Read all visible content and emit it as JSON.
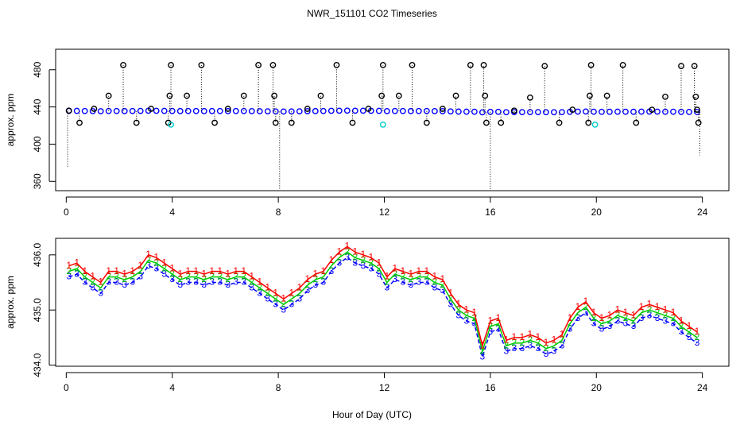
{
  "chart_data": [
    {
      "type": "scatter",
      "title": "NWR_151101  CO2 Timeseries",
      "y_label": "approx. ppm",
      "xlim": [
        -0.4,
        25
      ],
      "ylim": [
        350,
        502
      ],
      "xticks": [
        0,
        4,
        8,
        12,
        16,
        20,
        24
      ],
      "yticks": [
        360,
        400,
        440,
        480
      ],
      "x": [
        0.1,
        0.4,
        0.7,
        1.0,
        1.3,
        1.6,
        1.9,
        2.2,
        2.5,
        2.8,
        3.1,
        3.4,
        3.7,
        4.0,
        4.3,
        4.6,
        4.9,
        5.2,
        5.5,
        5.8,
        6.1,
        6.4,
        6.7,
        7.0,
        7.3,
        7.6,
        7.9,
        8.2,
        8.5,
        8.8,
        9.1,
        9.4,
        9.7,
        10.0,
        10.3,
        10.6,
        10.9,
        11.2,
        11.5,
        11.8,
        12.1,
        12.4,
        12.7,
        13.0,
        13.3,
        13.6,
        13.9,
        14.2,
        14.5,
        14.8,
        15.1,
        15.4,
        15.7,
        16.0,
        16.3,
        16.6,
        16.9,
        17.2,
        17.5,
        17.8,
        18.1,
        18.4,
        18.7,
        19.0,
        19.3,
        19.6,
        19.9,
        20.2,
        20.5,
        20.8,
        21.1,
        21.4,
        21.7,
        22.0,
        22.3,
        22.6,
        22.9,
        23.2,
        23.5,
        23.8
      ],
      "series": [
        {
          "color": "#0000ff",
          "marker": "circle",
          "values": [
            435.7,
            435.75,
            435.6,
            435.5,
            435.4,
            435.6,
            435.6,
            435.55,
            435.6,
            435.7,
            435.9,
            435.85,
            435.75,
            435.65,
            435.55,
            435.6,
            435.6,
            435.55,
            435.6,
            435.6,
            435.55,
            435.6,
            435.6,
            435.5,
            435.4,
            435.3,
            435.2,
            435.1,
            435.2,
            435.3,
            435.45,
            435.55,
            435.6,
            435.8,
            435.95,
            436.05,
            435.95,
            435.9,
            435.85,
            435.75,
            435.5,
            435.65,
            435.6,
            435.55,
            435.6,
            435.6,
            435.5,
            435.45,
            435.2,
            435.0,
            434.9,
            434.85,
            434.25,
            434.7,
            434.75,
            434.35,
            434.4,
            434.4,
            434.45,
            434.4,
            434.3,
            434.35,
            434.45,
            434.75,
            434.95,
            435.05,
            434.85,
            434.75,
            434.8,
            434.9,
            434.85,
            434.8,
            434.95,
            435.0,
            434.95,
            434.9,
            434.85,
            434.7,
            434.6,
            434.5
          ]
        },
        {
          "color": "#000000",
          "marker": "circle",
          "drop_lines": true,
          "x": [
            0.1,
            0.5,
            1.05,
            1.6,
            2.15,
            2.65,
            3.2,
            3.85,
            3.9,
            3.95,
            4.55,
            5.1,
            5.6,
            6.1,
            6.7,
            7.25,
            7.8,
            7.85,
            7.9,
            8.5,
            9.1,
            9.6,
            10.2,
            10.8,
            11.4,
            11.9,
            11.95,
            12.55,
            13.05,
            13.6,
            14.2,
            14.7,
            15.25,
            15.75,
            15.8,
            15.85,
            16.4,
            16.9,
            17.5,
            18.05,
            18.6,
            19.1,
            19.7,
            19.75,
            19.8,
            20.4,
            21.0,
            21.5,
            22.1,
            22.6,
            23.2,
            23.7,
            23.75,
            23.8,
            23.85
          ],
          "values": [
            436,
            423,
            438,
            452,
            485,
            423,
            438,
            423,
            452,
            485,
            452,
            485,
            423,
            438,
            452,
            485,
            485,
            452,
            423,
            423,
            438,
            452,
            485,
            423,
            438,
            452,
            485,
            452,
            485,
            423,
            438,
            452,
            485,
            485,
            452,
            423,
            423,
            436,
            450,
            484,
            423,
            437,
            423,
            452,
            485,
            452,
            485,
            423,
            437,
            451,
            484,
            484,
            451,
            437,
            423
          ]
        },
        {
          "color": "#00cccc",
          "marker": "circle",
          "x": [
            3.95,
            11.95,
            19.95
          ],
          "values": [
            421,
            421,
            421
          ]
        },
        {
          "color": "#000000",
          "marker": "none",
          "drop_lines": true,
          "x": [
            0.05,
            8.05,
            16.0,
            23.9
          ],
          "values": [
            375,
            351,
            350,
            388
          ]
        }
      ]
    },
    {
      "type": "line",
      "y_label": "approx. ppm",
      "x_label": "Hour of Day (UTC)",
      "xlim": [
        -0.4,
        25
      ],
      "ylim": [
        433.98,
        436.3
      ],
      "xticks": [
        0,
        4,
        8,
        12,
        16,
        20,
        24
      ],
      "yticks": [
        {
          "value": 434,
          "label": "434.0"
        },
        {
          "value": 435,
          "label": "435.0"
        },
        {
          "value": 436,
          "label": "436.0"
        }
      ],
      "x": [
        0.1,
        0.4,
        0.7,
        1.0,
        1.3,
        1.6,
        1.9,
        2.2,
        2.5,
        2.8,
        3.1,
        3.4,
        3.7,
        4.0,
        4.3,
        4.6,
        4.9,
        5.2,
        5.5,
        5.8,
        6.1,
        6.4,
        6.7,
        7.0,
        7.3,
        7.6,
        7.9,
        8.2,
        8.5,
        8.8,
        9.1,
        9.4,
        9.7,
        10.0,
        10.3,
        10.6,
        10.9,
        11.2,
        11.5,
        11.8,
        12.1,
        12.4,
        12.7,
        13.0,
        13.3,
        13.6,
        13.9,
        14.2,
        14.5,
        14.8,
        15.1,
        15.4,
        15.7,
        16.0,
        16.3,
        16.6,
        16.9,
        17.2,
        17.5,
        17.8,
        18.1,
        18.4,
        18.7,
        19.0,
        19.3,
        19.6,
        19.9,
        20.2,
        20.5,
        20.8,
        21.1,
        21.4,
        21.7,
        22.0,
        22.3,
        22.6,
        22.9,
        23.2,
        23.5,
        23.8
      ],
      "series": [
        {
          "color": "#ff0000",
          "marker": "1",
          "values": [
            435.8,
            435.85,
            435.7,
            435.6,
            435.5,
            435.7,
            435.7,
            435.65,
            435.7,
            435.8,
            436.0,
            435.95,
            435.85,
            435.75,
            435.65,
            435.7,
            435.7,
            435.65,
            435.7,
            435.7,
            435.65,
            435.7,
            435.7,
            435.6,
            435.5,
            435.4,
            435.3,
            435.2,
            435.3,
            435.4,
            435.55,
            435.65,
            435.7,
            435.9,
            436.05,
            436.15,
            436.05,
            436.0,
            435.95,
            435.85,
            435.6,
            435.75,
            435.7,
            435.65,
            435.7,
            435.7,
            435.6,
            435.55,
            435.3,
            435.1,
            435.0,
            434.95,
            434.35,
            434.8,
            434.85,
            434.45,
            434.5,
            434.5,
            434.55,
            434.5,
            434.4,
            434.45,
            434.55,
            434.85,
            435.05,
            435.15,
            434.95,
            434.85,
            434.9,
            435.0,
            434.95,
            434.9,
            435.05,
            435.1,
            435.05,
            435.0,
            434.95,
            434.8,
            434.7,
            434.6
          ]
        },
        {
          "color": "#00cc00",
          "marker": "2",
          "values": [
            435.7,
            435.75,
            435.6,
            435.5,
            435.4,
            435.6,
            435.6,
            435.55,
            435.6,
            435.7,
            435.9,
            435.85,
            435.75,
            435.65,
            435.55,
            435.6,
            435.6,
            435.55,
            435.6,
            435.6,
            435.55,
            435.6,
            435.6,
            435.5,
            435.4,
            435.3,
            435.2,
            435.1,
            435.2,
            435.3,
            435.45,
            435.55,
            435.6,
            435.8,
            435.95,
            436.05,
            435.95,
            435.9,
            435.85,
            435.75,
            435.5,
            435.65,
            435.6,
            435.55,
            435.6,
            435.6,
            435.5,
            435.45,
            435.2,
            435.0,
            434.9,
            434.85,
            434.25,
            434.7,
            434.75,
            434.35,
            434.4,
            434.4,
            434.45,
            434.4,
            434.3,
            434.35,
            434.45,
            434.75,
            434.95,
            435.05,
            434.85,
            434.75,
            434.8,
            434.9,
            434.85,
            434.8,
            434.95,
            435.0,
            434.95,
            434.9,
            434.85,
            434.7,
            434.6,
            434.5
          ]
        },
        {
          "color": "#0000ff",
          "marker": "3",
          "values": [
            435.6,
            435.65,
            435.5,
            435.4,
            435.3,
            435.5,
            435.5,
            435.45,
            435.5,
            435.6,
            435.8,
            435.75,
            435.65,
            435.55,
            435.45,
            435.5,
            435.5,
            435.45,
            435.5,
            435.5,
            435.45,
            435.5,
            435.5,
            435.4,
            435.3,
            435.2,
            435.1,
            435.0,
            435.1,
            435.2,
            435.35,
            435.45,
            435.5,
            435.7,
            435.85,
            435.95,
            435.85,
            435.8,
            435.75,
            435.65,
            435.4,
            435.55,
            435.5,
            435.45,
            435.5,
            435.5,
            435.4,
            435.35,
            435.1,
            434.9,
            434.8,
            434.75,
            434.15,
            434.6,
            434.65,
            434.25,
            434.3,
            434.3,
            434.35,
            434.3,
            434.2,
            434.25,
            434.35,
            434.65,
            434.85,
            434.95,
            434.75,
            434.65,
            434.7,
            434.8,
            434.75,
            434.7,
            434.85,
            434.9,
            434.85,
            434.8,
            434.75,
            434.6,
            434.5,
            434.4
          ]
        }
      ]
    }
  ]
}
